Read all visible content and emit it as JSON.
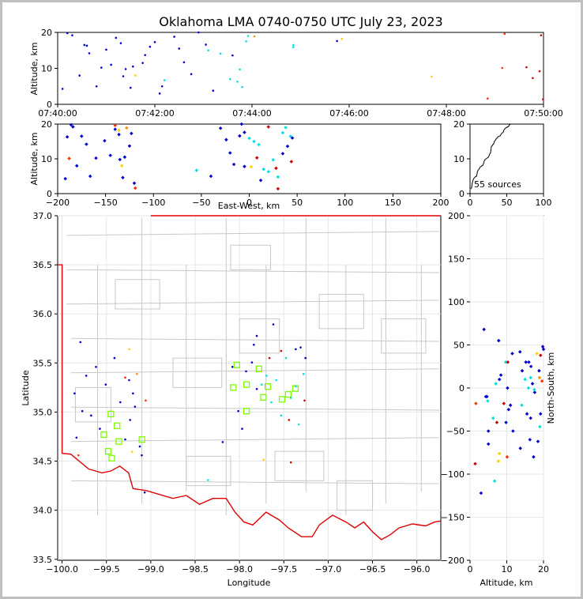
{
  "chart_data": {
    "type": "scatter",
    "title": "Oklahoma LMA 0740-0750 UTC July 23, 2023",
    "source_count_label": "55 sources",
    "time_altitude": {
      "ylabel": "Altitude, km",
      "xlim_minutes": [
        0,
        10
      ],
      "ylim": [
        0,
        20
      ],
      "xtick_labels": [
        "07:40:00",
        "07:42:00",
        "07:44:00",
        "07:46:00",
        "07:48:00",
        "07:50:00"
      ],
      "ytick_labels": [
        "0",
        "10",
        "20"
      ]
    },
    "ew_altitude": {
      "ylabel": "Altitude, km",
      "xlabel": "East-West, km",
      "xlim": [
        -200,
        200
      ],
      "ylim": [
        0,
        20
      ],
      "xtick_labels": [
        "−200",
        "−150",
        "−100",
        "−50",
        "0",
        "50",
        "100",
        "150",
        "200"
      ],
      "ytick_labels": [
        "0",
        "10",
        "20"
      ]
    },
    "histogram": {
      "xlim": [
        0,
        100
      ],
      "ylim": [
        0,
        20
      ],
      "xtick_labels": [
        "0",
        "50",
        "100"
      ],
      "ytick_labels": [
        "0",
        "10",
        "20"
      ]
    },
    "plan_view": {
      "xlabel": "Longitude",
      "ylabel": "Latitude",
      "xlim": [
        -100.05,
        -95.73
      ],
      "ylim": [
        33.49,
        37.0
      ],
      "xtick_labels": [
        "−100.0",
        "−99.5",
        "−99.0",
        "−98.5",
        "−98.0",
        "−97.5",
        "−97.0",
        "−96.5",
        "−96.0"
      ],
      "ytick_labels": [
        "33.5",
        "34.0",
        "34.5",
        "35.0",
        "35.5",
        "36.0",
        "36.5",
        "37.0"
      ]
    },
    "ns_altitude": {
      "xlabel": "Altitude, km",
      "ylabel": "North-South, km",
      "xlim": [
        0,
        20
      ],
      "ylim": [
        -200,
        200
      ],
      "xtick_labels": [
        "0",
        "10",
        "20"
      ],
      "ytick_labels": [
        "−200",
        "−150",
        "−100",
        "−50",
        "0",
        "50",
        "100",
        "150",
        "200"
      ]
    },
    "sources": [
      {
        "t": 0.1,
        "x": -192,
        "y": -10,
        "z": 4.3,
        "c": "#0000cc"
      },
      {
        "t": 0.2,
        "x": -186,
        "y": 48,
        "z": 19.8,
        "c": "#0000cc"
      },
      {
        "t": 0.3,
        "x": -184,
        "y": -30,
        "z": 19.2,
        "c": "#0000cc"
      },
      {
        "t": 0.45,
        "x": -180,
        "y": 10,
        "z": 8.0,
        "c": "#0000cc"
      },
      {
        "t": 0.55,
        "x": -175,
        "y": -35,
        "z": 16.5,
        "c": "#0000cc"
      },
      {
        "t": 0.65,
        "x": -170,
        "y": 20,
        "z": 14.2,
        "c": "#0000cc"
      },
      {
        "t": 0.8,
        "x": -166,
        "y": -50,
        "z": 5.0,
        "c": "#0000cc"
      },
      {
        "t": 0.9,
        "x": -160,
        "y": 0,
        "z": 10.2,
        "c": "#0000cc"
      },
      {
        "t": 1.0,
        "x": -151,
        "y": 30,
        "z": 15.2,
        "c": "#0000cc"
      },
      {
        "t": 1.1,
        "x": -145,
        "y": -20,
        "z": 11.0,
        "c": "#0000cc"
      },
      {
        "t": 1.2,
        "x": -140,
        "y": -62,
        "z": 18.5,
        "c": "#0000cc"
      },
      {
        "t": 1.3,
        "x": -136,
        "y": 5,
        "z": 17.0,
        "c": "#0000cc"
      },
      {
        "t": 1.4,
        "x": -135,
        "y": -40,
        "z": 9.8,
        "c": "#0000cc"
      },
      {
        "t": 1.5,
        "x": -132,
        "y": -10,
        "z": 4.6,
        "c": "#0000cc"
      },
      {
        "t": 1.55,
        "x": -130,
        "y": -25,
        "z": 10.5,
        "c": "#0000cc"
      },
      {
        "t": 1.8,
        "x": -125,
        "y": -70,
        "z": 13.7,
        "c": "#0000cc"
      },
      {
        "t": 2.0,
        "x": -123,
        "y": -80,
        "z": 17.3,
        "c": "#0000cc"
      },
      {
        "t": 2.1,
        "x": -120,
        "y": -122,
        "z": 3.0,
        "c": "#0000cc"
      },
      {
        "t": 2.15,
        "x": -40,
        "y": -65,
        "z": 5.0,
        "c": "#0000cc"
      },
      {
        "t": 2.4,
        "x": -30,
        "y": 20,
        "z": 18.8,
        "c": "#0000cc"
      },
      {
        "t": 2.5,
        "x": -24,
        "y": -30,
        "z": 15.5,
        "c": "#0000cc"
      },
      {
        "t": 2.6,
        "x": -20,
        "y": -50,
        "z": 11.7,
        "c": "#0000cc"
      },
      {
        "t": 2.75,
        "x": -16,
        "y": 15,
        "z": 8.4,
        "c": "#0000cc"
      },
      {
        "t": 3.05,
        "x": -10,
        "y": 25,
        "z": 16.6,
        "c": "#0000cc"
      },
      {
        "t": 5.75,
        "x": -5,
        "y": -5,
        "z": 17.6,
        "c": "#0000cc"
      },
      {
        "t": 4.85,
        "x": 0,
        "y": 0,
        "z": 15.9,
        "c": "#00e0e0"
      },
      {
        "t": 3.1,
        "x": 5,
        "y": 10,
        "z": 15.0,
        "c": "#00e0e0"
      },
      {
        "t": 3.35,
        "x": 10,
        "y": -20,
        "z": 14.1,
        "c": "#00e0e0"
      },
      {
        "t": 3.55,
        "x": 15,
        "y": 5,
        "z": 7.0,
        "c": "#00e0e0"
      },
      {
        "t": 3.7,
        "x": 20,
        "y": -35,
        "z": 6.3,
        "c": "#00e0e0"
      },
      {
        "t": 3.75,
        "x": 25,
        "y": 30,
        "z": 9.7,
        "c": "#00e0e0"
      },
      {
        "t": 3.8,
        "x": 30,
        "y": -15,
        "z": 4.8,
        "c": "#00e0e0"
      },
      {
        "t": 3.88,
        "x": 35,
        "y": -2,
        "z": 17.5,
        "c": "#00e0e0"
      },
      {
        "t": 3.92,
        "x": 38,
        "y": -45,
        "z": 19.0,
        "c": "#00e0e0"
      },
      {
        "t": 4.85,
        "x": 43,
        "y": 12,
        "z": 16.5,
        "c": "#00e0e0"
      },
      {
        "t": 2.2,
        "x": -55,
        "y": -108,
        "z": 6.7,
        "c": "#00e0e0"
      },
      {
        "t": 1.6,
        "x": -133,
        "y": -76,
        "z": 8.0,
        "c": "#ffd000"
      },
      {
        "t": 5.85,
        "x": -136,
        "y": 40,
        "z": 18.2,
        "c": "#ffd000"
      },
      {
        "t": 7.7,
        "x": 2,
        "y": -85,
        "z": 7.7,
        "c": "#ffd000"
      },
      {
        "t": 4.05,
        "x": -128,
        "y": 12,
        "z": 18.9,
        "c": "#ff9000"
      },
      {
        "t": 9.15,
        "x": -188,
        "y": -80,
        "z": 10.1,
        "c": "#ff3000"
      },
      {
        "t": 9.2,
        "x": -140,
        "y": 8,
        "z": 19.6,
        "c": "#ff3000"
      },
      {
        "t": 8.85,
        "x": -119,
        "y": -18,
        "z": 1.6,
        "c": "#ff3000"
      },
      {
        "t": 9.65,
        "x": 8,
        "y": 30,
        "z": 10.3,
        "c": "#cc0000"
      },
      {
        "t": 9.95,
        "x": 20,
        "y": 38,
        "z": 19.2,
        "c": "#cc0000"
      },
      {
        "t": 9.78,
        "x": 28,
        "y": -40,
        "z": 7.3,
        "c": "#cc0000"
      },
      {
        "t": 9.92,
        "x": 44,
        "y": -18,
        "z": 9.2,
        "c": "#cc0000"
      },
      {
        "t": 9.99,
        "x": 30,
        "y": -88,
        "z": 1.4,
        "c": "#cc0000"
      },
      {
        "t": 1.35,
        "x": -5,
        "y": 55,
        "z": 7.8,
        "c": "#0000cc"
      },
      {
        "t": 2.9,
        "x": -8,
        "y": 45,
        "z": 20.0,
        "c": "#0000cc"
      },
      {
        "t": 3.2,
        "x": 12,
        "y": 68,
        "z": 3.8,
        "c": "#0000cc"
      },
      {
        "t": 3.6,
        "x": 40,
        "y": 42,
        "z": 13.6,
        "c": "#0000cc"
      },
      {
        "t": 1.75,
        "x": 35,
        "y": 40,
        "z": 11.5,
        "c": "#0000cc"
      },
      {
        "t": 1.9,
        "x": 45,
        "y": 30,
        "z": 16.0,
        "c": "#0000cc"
      },
      {
        "t": 0.6,
        "x": -190,
        "y": -60,
        "z": 16.3,
        "c": "#0000cc"
      }
    ],
    "stations": [
      [
        -98.03,
        35.48
      ],
      [
        -97.78,
        35.44
      ],
      [
        -97.92,
        35.28
      ],
      [
        -98.07,
        35.25
      ],
      [
        -97.68,
        35.26
      ],
      [
        -97.37,
        35.24
      ],
      [
        -97.45,
        35.18
      ],
      [
        -97.73,
        35.15
      ],
      [
        -97.52,
        35.13
      ],
      [
        -97.92,
        35.01
      ],
      [
        -99.45,
        34.98
      ],
      [
        -99.38,
        34.86
      ],
      [
        -99.53,
        34.77
      ],
      [
        -99.36,
        34.7
      ],
      [
        -99.1,
        34.72
      ],
      [
        -99.48,
        34.6
      ],
      [
        -99.44,
        34.53
      ]
    ]
  }
}
